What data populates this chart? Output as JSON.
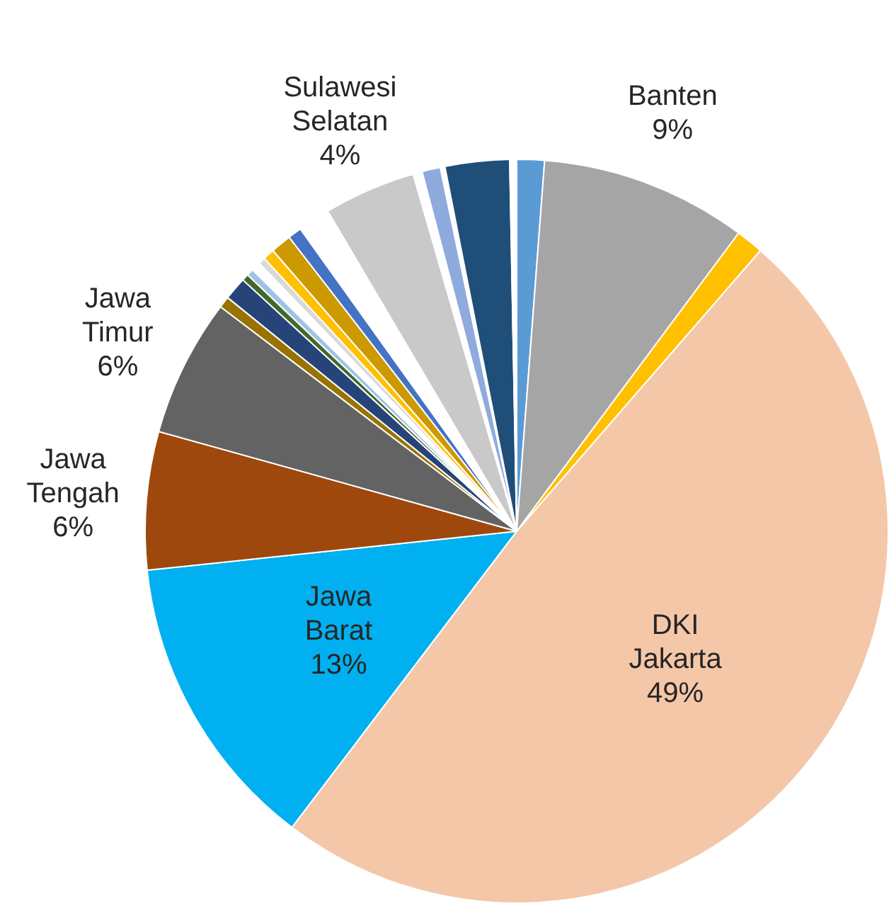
{
  "chart_data": {
    "type": "pie",
    "categories": [
      null,
      "Banten",
      null,
      "DKI Jakarta",
      "Jawa Barat",
      "Jawa Tengah",
      "Jawa Timur",
      null,
      null,
      null,
      null,
      null,
      null,
      null,
      null,
      null,
      null,
      "Sulawesi Selatan",
      null,
      null,
      null,
      null,
      null
    ],
    "values": [
      1.2,
      9,
      1.2,
      49,
      13,
      6,
      6,
      0.5,
      1.0,
      0.3,
      0.3,
      0.4,
      0.3,
      0.5,
      0.9,
      0.6,
      1.4,
      4,
      0.4,
      0.8,
      0.2,
      2.8,
      0.3
    ],
    "colors": [
      "#5b9bd5",
      "#a5a5a5",
      "#ffc000",
      "#f4c7a8",
      "#00b0f0",
      "#9e480e",
      "#636363",
      "#997300",
      "#264478",
      "#43682b",
      "#9dc3e6",
      "#ffffff",
      "#d9d9d9",
      "#ffc000",
      "#cc9900",
      "#4472c4",
      "#ffffff",
      "#c9c9c9",
      "#ffffff",
      "#8faadc",
      "#ffffff",
      "#1f4e79",
      "#ffffff"
    ],
    "value_labels": [
      null,
      "9%",
      null,
      "49%",
      "13%",
      "6%",
      "6%",
      null,
      null,
      null,
      null,
      null,
      null,
      null,
      null,
      null,
      null,
      "4%",
      null,
      null,
      null,
      null,
      null
    ]
  }
}
